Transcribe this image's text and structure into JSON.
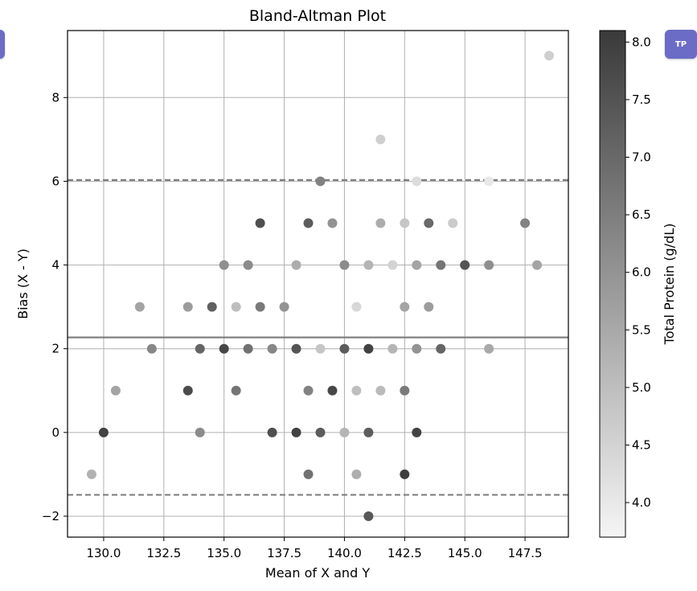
{
  "overlay_button": {
    "label": "TP",
    "color": "#6a6cc6"
  },
  "chart_data": {
    "type": "scatter",
    "title": "Bland-Altman Plot",
    "xlabel": "Mean of X and Y",
    "ylabel": "Bias (X - Y)",
    "xlim": [
      128.5,
      149.3
    ],
    "ylim": [
      -2.5,
      9.6
    ],
    "xticks": [
      130.0,
      132.5,
      135.0,
      137.5,
      140.0,
      142.5,
      145.0,
      147.5
    ],
    "xtick_labels": [
      "130.0",
      "132.5",
      "135.0",
      "137.5",
      "140.0",
      "142.5",
      "145.0",
      "147.5"
    ],
    "yticks": [
      -2,
      0,
      2,
      4,
      6,
      8
    ],
    "ytick_labels": [
      "−2",
      "0",
      "2",
      "4",
      "6",
      "8"
    ],
    "grid": true,
    "mean_bias": 2.27,
    "upper_loa": 6.03,
    "lower_loa": -1.49,
    "line_color": "#808080",
    "colorbar": {
      "label": "Total Protein (g/dL)",
      "min": 3.7,
      "max": 8.1,
      "ticks": [
        4.0,
        4.5,
        5.0,
        5.5,
        6.0,
        6.5,
        7.0,
        7.5,
        8.0
      ],
      "tick_labels": [
        "4.0",
        "4.5",
        "5.0",
        "5.5",
        "6.0",
        "6.5",
        "7.0",
        "7.5",
        "8.0"
      ],
      "colormap": "Greys",
      "color_low": "#f5f5f5",
      "color_high": "#3a3a3a"
    },
    "points": [
      {
        "x": 129.5,
        "y": -1,
        "c": 5.3
      },
      {
        "x": 130.0,
        "y": 0,
        "c": 7.9
      },
      {
        "x": 130.5,
        "y": 1,
        "c": 5.6
      },
      {
        "x": 131.5,
        "y": 3,
        "c": 5.6
      },
      {
        "x": 132.0,
        "y": 2,
        "c": 6.3
      },
      {
        "x": 133.5,
        "y": 3,
        "c": 5.8
      },
      {
        "x": 133.5,
        "y": 1,
        "c": 7.7
      },
      {
        "x": 134.0,
        "y": 2,
        "c": 7.1
      },
      {
        "x": 134.0,
        "y": 0,
        "c": 6.2
      },
      {
        "x": 134.5,
        "y": 3,
        "c": 7.2
      },
      {
        "x": 135.0,
        "y": 4,
        "c": 6.1
      },
      {
        "x": 135.0,
        "y": 2,
        "c": 7.8
      },
      {
        "x": 135.5,
        "y": 3,
        "c": 5.0
      },
      {
        "x": 135.5,
        "y": 1,
        "c": 6.7
      },
      {
        "x": 136.0,
        "y": 4,
        "c": 6.2
      },
      {
        "x": 136.0,
        "y": 2,
        "c": 6.8
      },
      {
        "x": 136.5,
        "y": 5,
        "c": 7.6
      },
      {
        "x": 136.5,
        "y": 3,
        "c": 6.6
      },
      {
        "x": 137.0,
        "y": 2,
        "c": 6.3
      },
      {
        "x": 137.0,
        "y": 0,
        "c": 7.6
      },
      {
        "x": 137.5,
        "y": 3,
        "c": 6.0
      },
      {
        "x": 138.0,
        "y": 4,
        "c": 5.4
      },
      {
        "x": 138.0,
        "y": 2,
        "c": 7.5
      },
      {
        "x": 138.0,
        "y": 0,
        "c": 7.9
      },
      {
        "x": 138.5,
        "y": 5,
        "c": 7.3
      },
      {
        "x": 138.5,
        "y": 1,
        "c": 6.4
      },
      {
        "x": 138.5,
        "y": -1,
        "c": 6.8
      },
      {
        "x": 139.0,
        "y": 6,
        "c": 6.4
      },
      {
        "x": 139.0,
        "y": 2,
        "c": 4.8
      },
      {
        "x": 139.0,
        "y": 0,
        "c": 7.3
      },
      {
        "x": 139.5,
        "y": 5,
        "c": 6.0
      },
      {
        "x": 139.5,
        "y": 1,
        "c": 7.8
      },
      {
        "x": 140.0,
        "y": 4,
        "c": 6.2
      },
      {
        "x": 140.0,
        "y": 2,
        "c": 7.3
      },
      {
        "x": 140.0,
        "y": 0,
        "c": 5.2
      },
      {
        "x": 140.5,
        "y": 3,
        "c": 4.4
      },
      {
        "x": 140.5,
        "y": 1,
        "c": 5.0
      },
      {
        "x": 140.5,
        "y": -1,
        "c": 5.4
      },
      {
        "x": 141.0,
        "y": 4,
        "c": 5.2
      },
      {
        "x": 141.0,
        "y": 2,
        "c": 7.9
      },
      {
        "x": 141.0,
        "y": 0,
        "c": 7.3
      },
      {
        "x": 141.0,
        "y": -2,
        "c": 7.4
      },
      {
        "x": 141.5,
        "y": 7,
        "c": 4.6
      },
      {
        "x": 141.5,
        "y": 5,
        "c": 5.4
      },
      {
        "x": 141.5,
        "y": 1,
        "c": 5.1
      },
      {
        "x": 142.0,
        "y": 4,
        "c": 4.5
      },
      {
        "x": 142.0,
        "y": 2,
        "c": 5.2
      },
      {
        "x": 142.5,
        "y": 5,
        "c": 4.8
      },
      {
        "x": 142.5,
        "y": 3,
        "c": 5.6
      },
      {
        "x": 142.5,
        "y": 1,
        "c": 6.6
      },
      {
        "x": 142.5,
        "y": -1,
        "c": 8.0
      },
      {
        "x": 143.0,
        "y": 6,
        "c": 4.3
      },
      {
        "x": 143.0,
        "y": 4,
        "c": 5.6
      },
      {
        "x": 143.0,
        "y": 2,
        "c": 6.0
      },
      {
        "x": 143.0,
        "y": 0,
        "c": 7.9
      },
      {
        "x": 143.5,
        "y": 5,
        "c": 7.0
      },
      {
        "x": 143.5,
        "y": 3,
        "c": 5.8
      },
      {
        "x": 144.0,
        "y": 4,
        "c": 6.7
      },
      {
        "x": 144.0,
        "y": 2,
        "c": 7.1
      },
      {
        "x": 144.5,
        "y": 5,
        "c": 4.7
      },
      {
        "x": 145.0,
        "y": 4,
        "c": 7.5
      },
      {
        "x": 146.0,
        "y": 6,
        "c": 4.0
      },
      {
        "x": 146.0,
        "y": 4,
        "c": 6.1
      },
      {
        "x": 146.0,
        "y": 2,
        "c": 5.5
      },
      {
        "x": 147.5,
        "y": 5,
        "c": 6.4
      },
      {
        "x": 148.0,
        "y": 4,
        "c": 5.6
      },
      {
        "x": 148.5,
        "y": 9,
        "c": 4.6
      }
    ]
  }
}
